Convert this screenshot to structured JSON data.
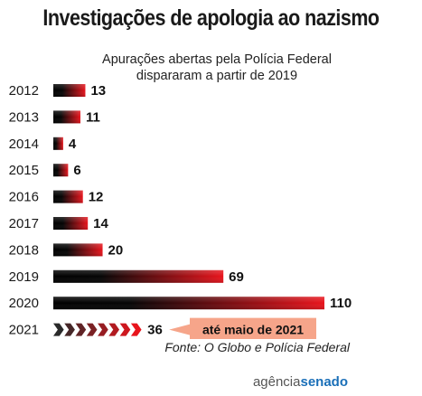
{
  "title": "Investigações de apologia ao nazismo",
  "subtitle_line1": "Apurações abertas pela Polícia Federal",
  "subtitle_line2": "dispararam a partir de 2019",
  "chart_data": {
    "type": "bar",
    "orientation": "horizontal",
    "title": "Investigações de apologia ao nazismo",
    "subtitle": "Apurações abertas pela Polícia Federal dispararam a partir de 2019",
    "categories": [
      "2012",
      "2013",
      "2014",
      "2015",
      "2016",
      "2017",
      "2018",
      "2019",
      "2020",
      "2021"
    ],
    "values": [
      13,
      11,
      4,
      6,
      12,
      14,
      20,
      69,
      110,
      36
    ],
    "value_labels": [
      "13",
      "11",
      "4",
      "6",
      "12",
      "14",
      "20",
      "69",
      "110",
      "36"
    ],
    "annotations": [
      {
        "category": "2021",
        "text": "até maio de 2021"
      }
    ],
    "colors": {
      "bar_start": "#000000",
      "bar_end": "#e8141c",
      "callout_fill": "#f6a58a"
    },
    "xlim": [
      0,
      110
    ],
    "grid": false,
    "legend": "none"
  },
  "source": "Fonte: O Globo e Polícia Federal",
  "brand": {
    "part1": "agência",
    "part2": "senado"
  }
}
